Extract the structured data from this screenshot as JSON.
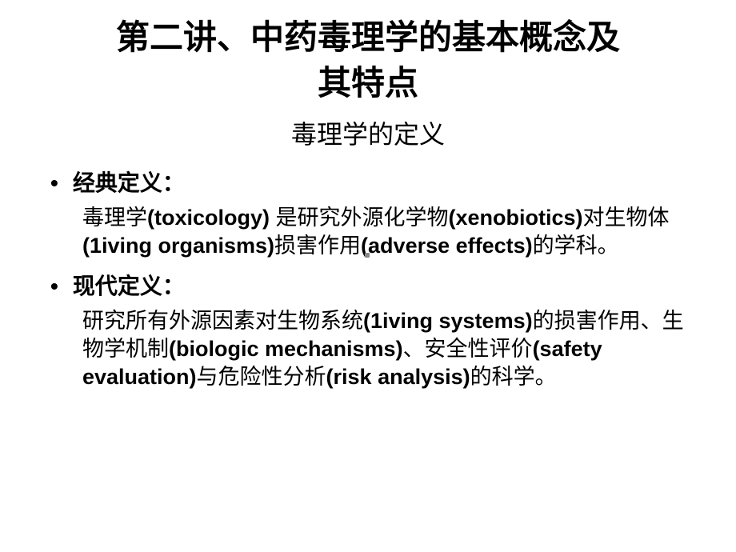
{
  "title_line1": "第二讲、中药毒理学的基本概念及",
  "title_line2": "其特点",
  "subtitle": "毒理学的定义",
  "section1": {
    "heading": "经典定义：",
    "body_parts": [
      {
        "t": "cjk",
        "v": "毒理学"
      },
      {
        "t": "latin",
        "v": "(toxicology) "
      },
      {
        "t": "cjk",
        "v": "是研究外源化学物"
      },
      {
        "t": "latin",
        "v": "(xenobiotics)"
      },
      {
        "t": "cjk",
        "v": "对生物体"
      },
      {
        "t": "latin",
        "v": "(1iving organisms)"
      },
      {
        "t": "cjk",
        "v": "损害作用"
      },
      {
        "t": "latin",
        "v": "(adverse effects)"
      },
      {
        "t": "cjk",
        "v": "的学科。"
      }
    ]
  },
  "section2": {
    "heading": "现代定义：",
    "body_parts": [
      {
        "t": "cjk",
        "v": "研究所有外源因素对生物系统"
      },
      {
        "t": "latin",
        "v": "(1iving systems)"
      },
      {
        "t": "cjk",
        "v": "的损害作用、生物学机制"
      },
      {
        "t": "latin",
        "v": "(biologic mechanisms)"
      },
      {
        "t": "cjk",
        "v": "、安全性评价"
      },
      {
        "t": "latin",
        "v": "(safety evaluation)"
      },
      {
        "t": "cjk",
        "v": "与危险性分析"
      },
      {
        "t": "latin",
        "v": "(risk analysis)"
      },
      {
        "t": "cjk",
        "v": "的科学。"
      }
    ]
  },
  "colors": {
    "background": "#ffffff",
    "text": "#000000"
  },
  "fonts": {
    "title_family": "KaiTi",
    "heading_family": "SimHei",
    "body_cjk_family": "SimSun",
    "body_latin_family": "Arial",
    "title_size_pt": 42,
    "subtitle_size_pt": 32,
    "heading_size_pt": 28,
    "body_size_pt": 27
  }
}
